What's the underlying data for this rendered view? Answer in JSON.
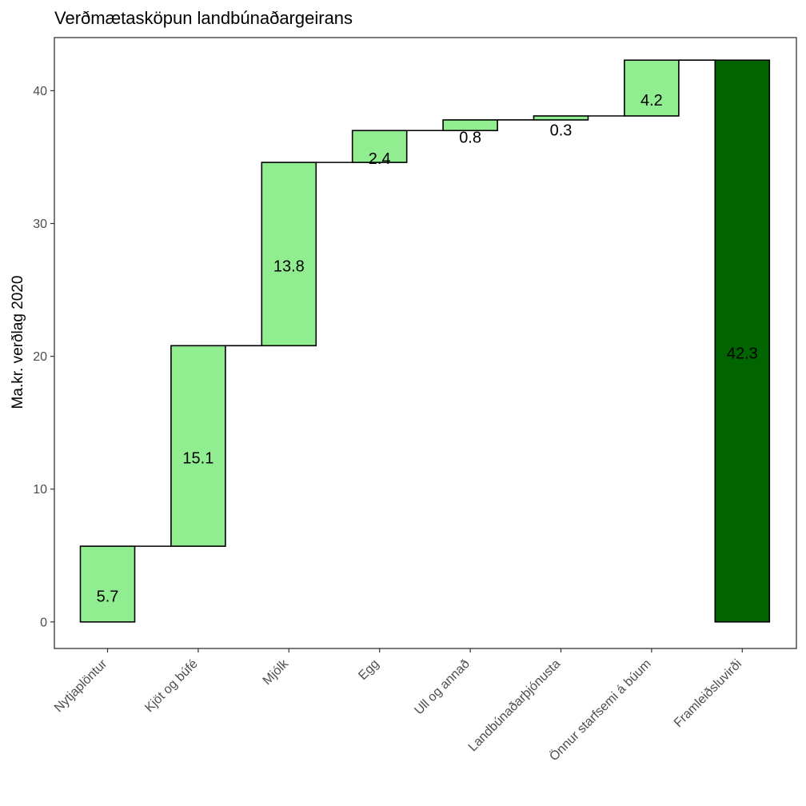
{
  "chart_data": {
    "type": "bar",
    "subtype": "waterfall",
    "title": "Verðmætasköpun landbúnaðargeirans",
    "xlabel": "",
    "ylabel": "Ma.kr. verðlag 2020",
    "ylim": [
      -2,
      44
    ],
    "yticks": [
      0,
      10,
      20,
      30,
      40
    ],
    "categories": [
      "Nytjaplöntur",
      "Kjöt og búfé",
      "Mjólk",
      "Egg",
      "Ull og annað",
      "Landbúnaðarþjónusta",
      "Önnur starfsemi á búum",
      "Framleiðsluvirði"
    ],
    "values": [
      5.7,
      15.1,
      13.8,
      2.4,
      0.8,
      0.3,
      4.2,
      42.3
    ],
    "labels": [
      "5.7",
      "15.1",
      "13.8",
      "2.4",
      "0.8",
      "0.3",
      "4.2",
      "42.3"
    ],
    "total_index": 7,
    "colors": {
      "step": "#90ee90",
      "total": "#006400",
      "outline": "#000000"
    },
    "grid": false,
    "legend": "none"
  }
}
